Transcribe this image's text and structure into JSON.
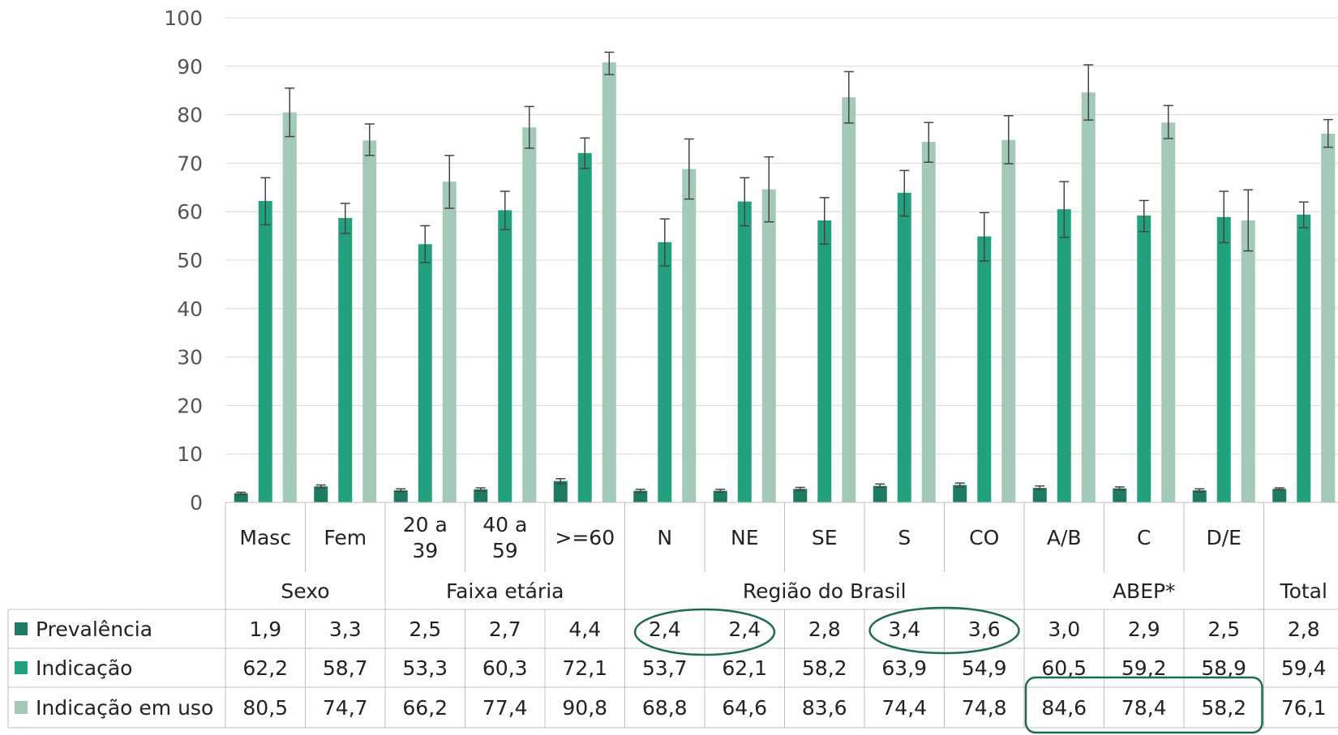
{
  "chart_data": {
    "type": "bar",
    "ylim": [
      0,
      100
    ],
    "yticks": [
      0,
      10,
      20,
      30,
      40,
      50,
      60,
      70,
      80,
      90,
      100
    ],
    "grid": true,
    "legend_position": "left of data table",
    "error_bars": true,
    "categories": [
      "Masc",
      "Fem",
      "20 a 39",
      "40 a 59",
      ">=60",
      "N",
      "NE",
      "SE",
      "S",
      "CO",
      "A/B",
      "C",
      "D/E",
      ""
    ],
    "category_label_lines": [
      [
        "Masc"
      ],
      [
        "Fem"
      ],
      [
        "20 a",
        "39"
      ],
      [
        "40 a",
        "59"
      ],
      [
        ">=60"
      ],
      [
        "N"
      ],
      [
        "NE"
      ],
      [
        "SE"
      ],
      [
        "S"
      ],
      [
        "CO"
      ],
      [
        "A/B"
      ],
      [
        "C"
      ],
      [
        "D/E"
      ],
      []
    ],
    "groups": [
      {
        "label": "Sexo",
        "start": 0,
        "end": 1
      },
      {
        "label": "Faixa etária",
        "start": 2,
        "end": 4
      },
      {
        "label": "Região do Brasil",
        "start": 5,
        "end": 9
      },
      {
        "label": "ABEP*",
        "start": 10,
        "end": 12
      },
      {
        "label": "Total",
        "start": 13,
        "end": 13
      }
    ],
    "series": [
      {
        "name": "Prevalência",
        "color": "#1e7a62",
        "values": [
          1.9,
          3.3,
          2.5,
          2.7,
          4.4,
          2.4,
          2.4,
          2.8,
          3.4,
          3.6,
          3.0,
          2.9,
          2.5,
          2.8
        ],
        "labels": [
          "1,9",
          "3,3",
          "2,5",
          "2,7",
          "4,4",
          "2,4",
          "2,4",
          "2,8",
          "3,4",
          "3,6",
          "3,0",
          "2,9",
          "2,5",
          "2,8"
        ],
        "err_low": [
          1.6,
          3.0,
          2.2,
          2.4,
          3.9,
          2.1,
          2.1,
          2.5,
          3.1,
          3.2,
          2.7,
          2.6,
          2.2,
          2.6
        ],
        "err_high": [
          2.1,
          3.6,
          2.8,
          3.0,
          4.9,
          2.7,
          2.7,
          3.1,
          3.8,
          4.0,
          3.4,
          3.2,
          2.8,
          3.0
        ]
      },
      {
        "name": "Indicação",
        "color": "#23a07e",
        "values": [
          62.2,
          58.7,
          53.3,
          60.3,
          72.1,
          53.7,
          62.1,
          58.2,
          63.9,
          54.9,
          60.5,
          59.2,
          58.9,
          59.4
        ],
        "labels": [
          "62,2",
          "58,7",
          "53,3",
          "60,3",
          "72,1",
          "53,7",
          "62,1",
          "58,2",
          "63,9",
          "54,9",
          "60,5",
          "59,2",
          "58,9",
          "59,4"
        ],
        "err_low": [
          57.3,
          55.5,
          49.5,
          56.3,
          68.9,
          48.8,
          57.1,
          53.3,
          59.1,
          49.8,
          54.7,
          55.9,
          53.6,
          56.7
        ],
        "err_high": [
          67.0,
          61.7,
          57.1,
          64.2,
          75.2,
          58.5,
          67.0,
          62.9,
          68.5,
          59.8,
          66.2,
          62.3,
          64.2,
          62.0
        ]
      },
      {
        "name": "Indicação em uso",
        "color": "#a3c9b8",
        "values": [
          80.5,
          74.7,
          66.2,
          77.4,
          90.8,
          68.8,
          64.6,
          83.6,
          74.4,
          74.8,
          84.6,
          78.4,
          58.2,
          76.1
        ],
        "labels": [
          "80,5",
          "74,7",
          "66,2",
          "77,4",
          "90,8",
          "68,8",
          "64,6",
          "83,6",
          "74,4",
          "74,8",
          "84,6",
          "78,4",
          "58,2",
          "76,1"
        ],
        "err_low": [
          75.5,
          71.6,
          60.7,
          73.1,
          88.3,
          62.6,
          57.9,
          78.3,
          70.2,
          69.9,
          78.9,
          75.1,
          51.9,
          73.3
        ],
        "err_high": [
          85.5,
          78.1,
          71.6,
          81.7,
          92.9,
          75.0,
          71.3,
          88.9,
          78.4,
          79.8,
          90.3,
          81.9,
          64.5,
          79.0
        ]
      }
    ]
  }
}
